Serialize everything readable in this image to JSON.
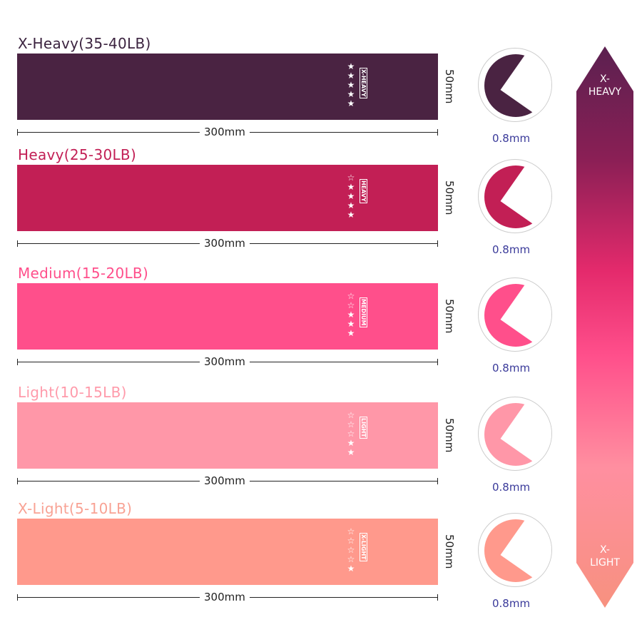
{
  "bands": [
    {
      "title": "X-Heavy(35-40LB)",
      "title_color": "#3c2440",
      "color": "#4a2342",
      "tag": "X-HEAVY",
      "stars_filled": 5,
      "stars_total": 5,
      "width": "300mm",
      "height": "50mm",
      "thickness": "0.8mm"
    },
    {
      "title": "Heavy(25-30LB)",
      "title_color": "#c21f55",
      "color": "#c21f55",
      "tag": "HEAVY",
      "stars_filled": 4,
      "stars_total": 5,
      "width": "300mm",
      "height": "50mm",
      "thickness": "0.8mm"
    },
    {
      "title": "Medium(15-20LB)",
      "title_color": "#ff4f8b",
      "color": "#ff4f8b",
      "tag": "MEDIUM",
      "stars_filled": 3,
      "stars_total": 5,
      "width": "300mm",
      "height": "50mm",
      "thickness": "0.8mm"
    },
    {
      "title": "Light(10-15LB)",
      "title_color": "#ff9aaa",
      "color": "#ff97a8",
      "tag": "LIGHT",
      "stars_filled": 2,
      "stars_total": 5,
      "width": "300mm",
      "height": "50mm",
      "thickness": "0.8mm"
    },
    {
      "title": "X-Light(5-10LB)",
      "title_color": "#f8a294",
      "color": "#ff998c",
      "tag": "X-LIGHT",
      "stars_filled": 1,
      "stars_total": 5,
      "width": "300mm",
      "height": "50mm",
      "thickness": "0.8mm"
    }
  ],
  "scale": {
    "top_label": "X-\nHEAVY",
    "bottom_label": "X-\nLIGHT"
  }
}
